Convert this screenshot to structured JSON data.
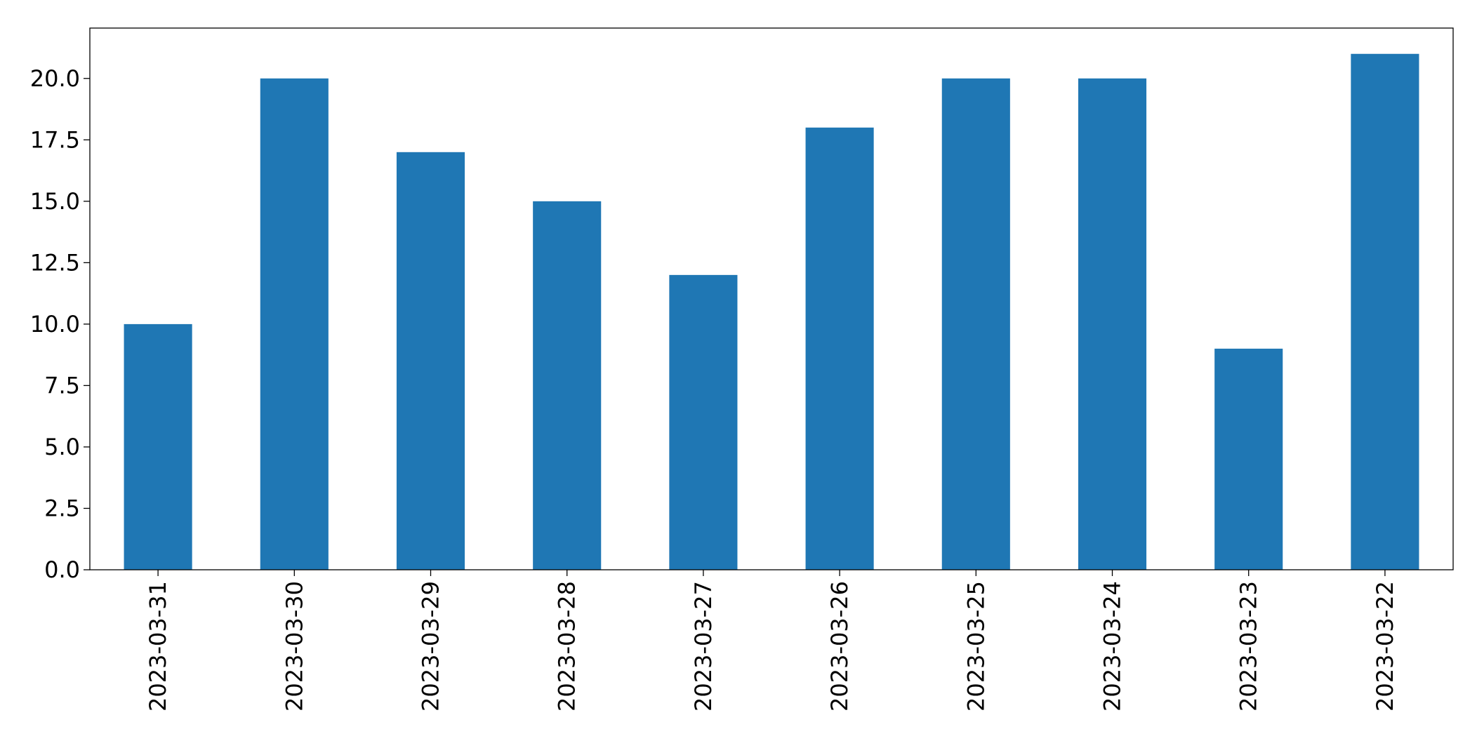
{
  "colors": {
    "bar": "#1f77b4",
    "axis": "#000000",
    "background": "#ffffff"
  },
  "chart_data": {
    "type": "bar",
    "categories": [
      "2023-03-31",
      "2023-03-30",
      "2023-03-29",
      "2023-03-28",
      "2023-03-27",
      "2023-03-26",
      "2023-03-25",
      "2023-03-24",
      "2023-03-23",
      "2023-03-22"
    ],
    "values": [
      10,
      20,
      17,
      15,
      12,
      18,
      20,
      20,
      9,
      21
    ],
    "title": "",
    "xlabel": "",
    "ylabel": "",
    "ylim": [
      0,
      22.05
    ],
    "yticks": [
      0,
      2.5,
      5,
      7.5,
      10,
      12.5,
      15,
      17.5,
      20
    ],
    "ytick_labels": [
      "0.0",
      "2.5",
      "5.0",
      "7.5",
      "10.0",
      "12.5",
      "15.0",
      "17.5",
      "20.0"
    ],
    "grid": false,
    "legend": "none"
  }
}
